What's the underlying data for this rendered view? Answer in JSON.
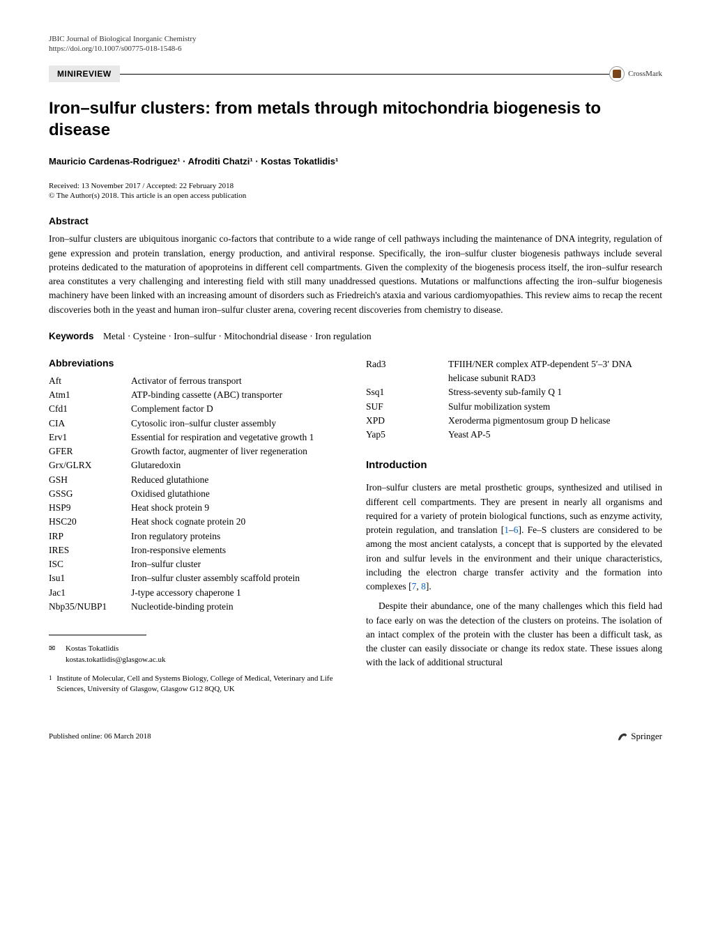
{
  "journal": "JBIC Journal of Biological Inorganic Chemistry",
  "doi": "https://doi.org/10.1007/s00775-018-1548-6",
  "article_type": "MINIREVIEW",
  "crossmark_label": "CrossMark",
  "title": "Iron–sulfur clusters: from metals through mitochondria biogenesis to disease",
  "authors": "Mauricio Cardenas-Rodriguez¹ · Afroditi Chatzi¹ · Kostas Tokatlidis¹",
  "received_accepted": "Received: 13 November 2017 / Accepted: 22 February 2018",
  "copyright": "© The Author(s) 2018. This article is an open access publication",
  "abstract_heading": "Abstract",
  "abstract_text": "Iron–sulfur clusters are ubiquitous inorganic co-factors that contribute to a wide range of cell pathways including the maintenance of DNA integrity, regulation of gene expression and protein translation, energy production, and antiviral response. Specifically, the iron–sulfur cluster biogenesis pathways include several proteins dedicated to the maturation of apoproteins in different cell compartments. Given the complexity of the biogenesis process itself, the iron–sulfur research area constitutes a very challenging and interesting field with still many unaddressed questions. Mutations or malfunctions affecting the iron–sulfur biogenesis machinery have been linked with an increasing amount of disorders such as Friedreich's ataxia and various cardiomyopathies. This review aims to recap the recent discoveries both in the yeast and human iron–sulfur cluster arena, covering recent discoveries from chemistry to disease.",
  "keywords_label": "Keywords",
  "keywords": "Metal · Cysteine · Iron–sulfur · Mitochondrial disease · Iron regulation",
  "abbreviations_heading": "Abbreviations",
  "abbreviations_left": [
    {
      "key": "Aft",
      "val": "Activator of ferrous transport"
    },
    {
      "key": "Atm1",
      "val": "ATP-binding cassette (ABC) transporter"
    },
    {
      "key": "Cfd1",
      "val": "Complement factor D"
    },
    {
      "key": "CIA",
      "val": "Cytosolic iron–sulfur cluster assembly"
    },
    {
      "key": "Erv1",
      "val": "Essential for respiration and vegetative growth 1"
    },
    {
      "key": "GFER",
      "val": "Growth factor, augmenter of liver regeneration"
    },
    {
      "key": "Grx/GLRX",
      "val": "Glutaredoxin"
    },
    {
      "key": "GSH",
      "val": "Reduced glutathione"
    },
    {
      "key": "GSSG",
      "val": "Oxidised glutathione"
    },
    {
      "key": "HSP9",
      "val": "Heat shock protein 9"
    },
    {
      "key": "HSC20",
      "val": "Heat shock cognate protein 20"
    },
    {
      "key": "IRP",
      "val": "Iron regulatory proteins"
    },
    {
      "key": "IRES",
      "val": "Iron-responsive elements"
    },
    {
      "key": "ISC",
      "val": "Iron–sulfur cluster"
    },
    {
      "key": "Isu1",
      "val": "Iron–sulfur cluster assembly scaffold protein"
    },
    {
      "key": "Jac1",
      "val": "J-type accessory chaperone 1"
    },
    {
      "key": "Nbp35/NUBP1",
      "val": "Nucleotide-binding protein"
    }
  ],
  "abbreviations_right": [
    {
      "key": "Rad3",
      "val": "TFIIH/NER complex ATP-dependent 5′–3′ DNA helicase subunit RAD3"
    },
    {
      "key": "Ssq1",
      "val": "Stress-seventy sub-family Q 1"
    },
    {
      "key": "SUF",
      "val": "Sulfur mobilization system"
    },
    {
      "key": "XPD",
      "val": "Xeroderma pigmentosum group D helicase"
    },
    {
      "key": "Yap5",
      "val": "Yeast AP-5"
    }
  ],
  "introduction_heading": "Introduction",
  "intro_p1_a": "Iron–sulfur clusters are metal prosthetic groups, synthesized and utilised in different cell compartments. They are present in nearly all organisms and required for a variety of protein biological functions, such as enzyme activity, protein regulation, and translation [",
  "intro_p1_ref1": "1",
  "intro_p1_dash": "–",
  "intro_p1_ref2": "6",
  "intro_p1_b": "]. Fe–S clusters are considered to be among the most ancient catalysts, a concept that is supported by the elevated iron and sulfur levels in the environment and their unique characteristics, including the electron charge transfer activity and the formation into complexes [",
  "intro_p1_ref3": "7",
  "intro_p1_comma": ", ",
  "intro_p1_ref4": "8",
  "intro_p1_c": "].",
  "intro_p2": "Despite their abundance, one of the many challenges which this field had to face early on was the detection of the clusters on proteins. The isolation of an intact complex of the protein with the cluster has been a difficult task, as the cluster can easily dissociate or change its redox state. These issues along with the lack of additional structural",
  "corresponding_name": "Kostas Tokatlidis",
  "corresponding_email": "kostas.tokatlidis@glasgow.ac.uk",
  "affiliation_num": "1",
  "affiliation_text": "Institute of Molecular, Cell and Systems Biology, College of Medical, Veterinary and Life Sciences, University of Glasgow, Glasgow G12 8QQ, UK",
  "published_online": "Published online: 06 March 2018",
  "publisher": "Springer"
}
